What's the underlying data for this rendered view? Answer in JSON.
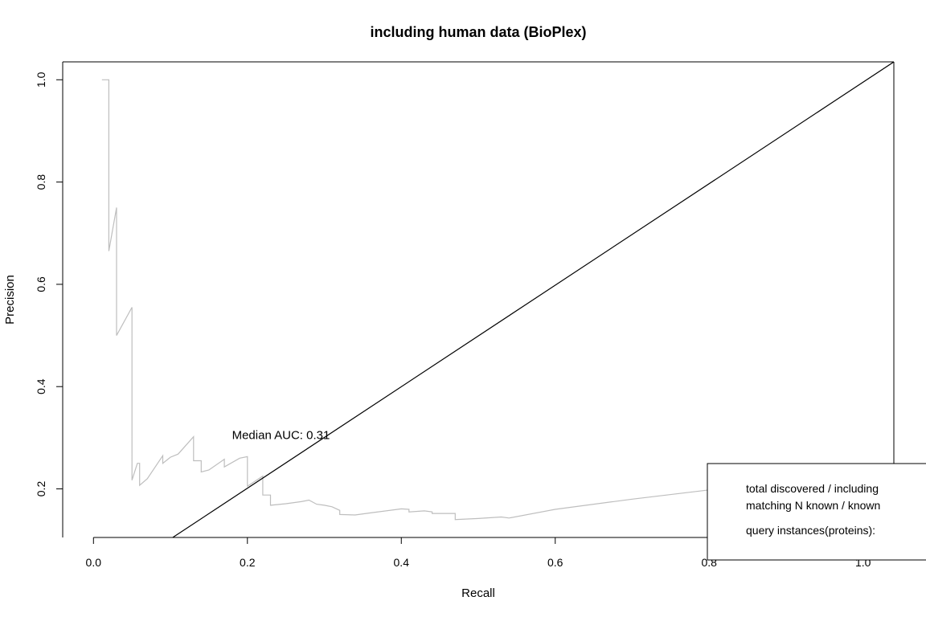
{
  "chart_data": {
    "type": "line",
    "title": "including human data (BioPlex)",
    "xlabel": "Recall",
    "ylabel": "Precision",
    "xlim": [
      -0.04,
      1.04
    ],
    "ylim": [
      0.105,
      1.035
    ],
    "xticks": [
      "0.0",
      "0.2",
      "0.4",
      "0.6",
      "0.8",
      "1.0"
    ],
    "xtick_values": [
      0.0,
      0.2,
      0.4,
      0.6,
      0.8,
      1.0
    ],
    "yticks": [
      "0.2",
      "0.4",
      "0.6",
      "0.8",
      "1.0"
    ],
    "ytick_values": [
      0.2,
      0.4,
      0.6,
      0.8,
      1.0
    ],
    "annotation": {
      "text": "Median AUC: 0.31",
      "x": 0.18,
      "y": 0.305
    },
    "series": [
      {
        "name": "precision-recall curve",
        "color": "#bebebe",
        "x": [
          0.011,
          0.02,
          0.02,
          0.03,
          0.03,
          0.05,
          0.05,
          0.057,
          0.06,
          0.06,
          0.07,
          0.09,
          0.09,
          0.1,
          0.11,
          0.13,
          0.13,
          0.14,
          0.14,
          0.15,
          0.17,
          0.17,
          0.19,
          0.2,
          0.2,
          0.22,
          0.22,
          0.23,
          0.23,
          0.25,
          0.27,
          0.28,
          0.29,
          0.3,
          0.31,
          0.32,
          0.32,
          0.34,
          0.36,
          0.4,
          0.41,
          0.41,
          0.43,
          0.44,
          0.44,
          0.47,
          0.47,
          0.5,
          0.53,
          0.54,
          0.6,
          0.7,
          0.8,
          0.83
        ],
        "y": [
          1.0,
          1.0,
          0.665,
          0.75,
          0.5,
          0.555,
          0.217,
          0.25,
          0.25,
          0.207,
          0.22,
          0.265,
          0.25,
          0.262,
          0.268,
          0.302,
          0.255,
          0.255,
          0.233,
          0.237,
          0.258,
          0.243,
          0.26,
          0.263,
          0.205,
          0.225,
          0.188,
          0.188,
          0.168,
          0.171,
          0.175,
          0.178,
          0.17,
          0.168,
          0.165,
          0.158,
          0.15,
          0.149,
          0.153,
          0.161,
          0.16,
          0.155,
          0.157,
          0.155,
          0.152,
          0.152,
          0.14,
          0.142,
          0.145,
          0.143,
          0.16,
          0.18,
          0.198,
          0.205
        ]
      },
      {
        "name": "diagonal reference",
        "color": "#000000",
        "x": [
          0.103,
          1.04
        ],
        "y": [
          0.105,
          1.035
        ]
      }
    ],
    "legend": {
      "position": "bottom-right",
      "lines": [
        "total discovered / including",
        "matching N known / known",
        "query instances(proteins):"
      ]
    }
  }
}
